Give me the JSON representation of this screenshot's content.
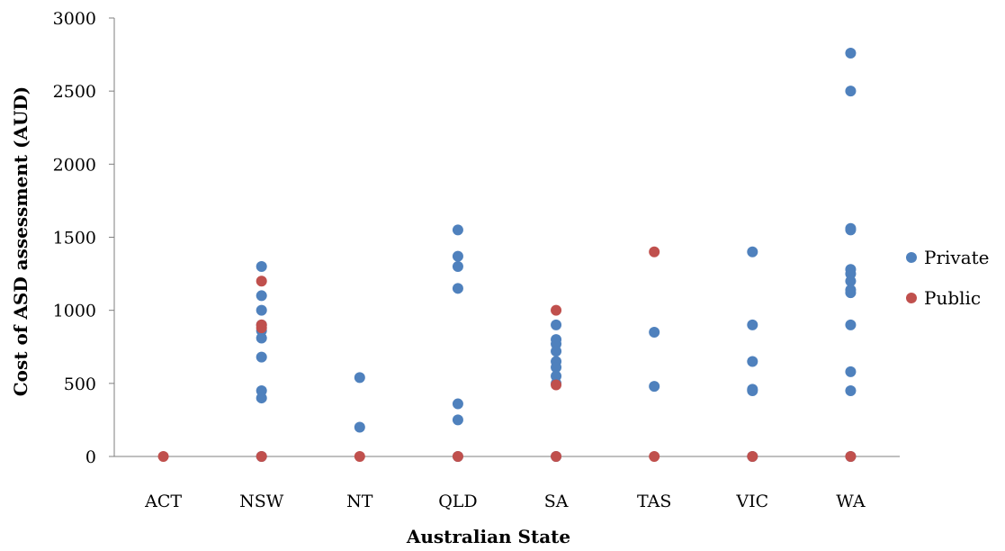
{
  "chart_data": {
    "type": "scatter",
    "title": "",
    "xlabel": "Australian State",
    "ylabel": "Cost of ASD assessment (AUD)",
    "categories": [
      "ACT",
      "NSW",
      "NT",
      "QLD",
      "SA",
      "TAS",
      "VIC",
      "WA"
    ],
    "ylim": [
      0,
      3000
    ],
    "yticks": [
      "0",
      "500",
      "1000",
      "1500",
      "2000",
      "2500",
      "3000"
    ],
    "grid": false,
    "legend_position": "right",
    "series": [
      {
        "name": "Private",
        "color": "#4f81bd",
        "points": [
          [
            "NSW",
            1300
          ],
          [
            "NSW",
            1100
          ],
          [
            "NSW",
            1000
          ],
          [
            "NSW",
            900
          ],
          [
            "NSW",
            860
          ],
          [
            "NSW",
            810
          ],
          [
            "NSW",
            680
          ],
          [
            "NSW",
            450
          ],
          [
            "NSW",
            400
          ],
          [
            "NSW",
            0
          ],
          [
            "NT",
            540
          ],
          [
            "NT",
            200
          ],
          [
            "QLD",
            1550
          ],
          [
            "QLD",
            1370
          ],
          [
            "QLD",
            1300
          ],
          [
            "QLD",
            1150
          ],
          [
            "QLD",
            360
          ],
          [
            "QLD",
            250
          ],
          [
            "QLD",
            0
          ],
          [
            "SA",
            900
          ],
          [
            "SA",
            800
          ],
          [
            "SA",
            770
          ],
          [
            "SA",
            720
          ],
          [
            "SA",
            650
          ],
          [
            "SA",
            610
          ],
          [
            "SA",
            550
          ],
          [
            "SA",
            500
          ],
          [
            "SA",
            0
          ],
          [
            "TAS",
            850
          ],
          [
            "TAS",
            480
          ],
          [
            "VIC",
            1400
          ],
          [
            "VIC",
            900
          ],
          [
            "VIC",
            650
          ],
          [
            "VIC",
            460
          ],
          [
            "VIC",
            450
          ],
          [
            "VIC",
            0
          ],
          [
            "WA",
            2760
          ],
          [
            "WA",
            2500
          ],
          [
            "WA",
            1560
          ],
          [
            "WA",
            1550
          ],
          [
            "WA",
            1280
          ],
          [
            "WA",
            1250
          ],
          [
            "WA",
            1200
          ],
          [
            "WA",
            1140
          ],
          [
            "WA",
            1120
          ],
          [
            "WA",
            900
          ],
          [
            "WA",
            580
          ],
          [
            "WA",
            450
          ],
          [
            "WA",
            0
          ]
        ]
      },
      {
        "name": "Public",
        "color": "#c0504d",
        "points": [
          [
            "ACT",
            0
          ],
          [
            "NSW",
            1200
          ],
          [
            "NSW",
            900
          ],
          [
            "NSW",
            880
          ],
          [
            "NSW",
            0
          ],
          [
            "NT",
            0
          ],
          [
            "QLD",
            0
          ],
          [
            "SA",
            1000
          ],
          [
            "SA",
            490
          ],
          [
            "SA",
            0
          ],
          [
            "TAS",
            1400
          ],
          [
            "TAS",
            0
          ],
          [
            "VIC",
            0
          ],
          [
            "WA",
            0
          ]
        ]
      }
    ]
  }
}
